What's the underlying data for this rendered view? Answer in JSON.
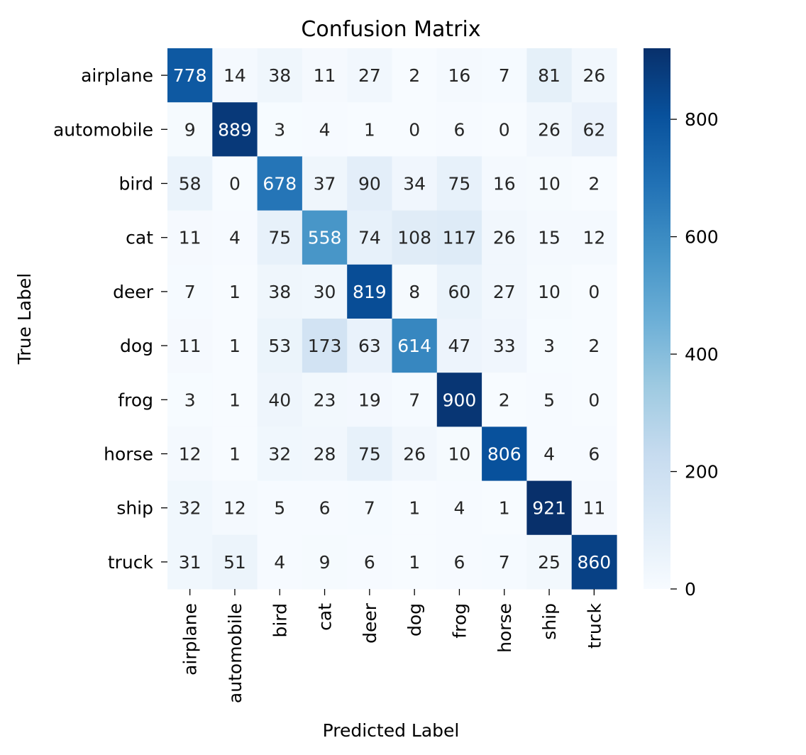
{
  "chart_data": {
    "type": "heatmap",
    "title": "Confusion Matrix",
    "xlabel": "Predicted Label",
    "ylabel": "True Label",
    "x_categories": [
      "airplane",
      "automobile",
      "bird",
      "cat",
      "deer",
      "dog",
      "frog",
      "horse",
      "ship",
      "truck"
    ],
    "y_categories": [
      "airplane",
      "automobile",
      "bird",
      "cat",
      "deer",
      "dog",
      "frog",
      "horse",
      "ship",
      "truck"
    ],
    "values": [
      [
        778,
        14,
        38,
        11,
        27,
        2,
        16,
        7,
        81,
        26
      ],
      [
        9,
        889,
        3,
        4,
        1,
        0,
        6,
        0,
        26,
        62
      ],
      [
        58,
        0,
        678,
        37,
        90,
        34,
        75,
        16,
        10,
        2
      ],
      [
        11,
        4,
        75,
        558,
        74,
        108,
        117,
        26,
        15,
        12
      ],
      [
        7,
        1,
        38,
        30,
        819,
        8,
        60,
        27,
        10,
        0
      ],
      [
        11,
        1,
        53,
        173,
        63,
        614,
        47,
        33,
        3,
        2
      ],
      [
        3,
        1,
        40,
        23,
        19,
        7,
        900,
        2,
        5,
        0
      ],
      [
        12,
        1,
        32,
        28,
        75,
        26,
        10,
        806,
        4,
        6
      ],
      [
        32,
        12,
        5,
        6,
        7,
        1,
        4,
        1,
        921,
        11
      ],
      [
        31,
        51,
        4,
        9,
        6,
        1,
        6,
        7,
        25,
        860
      ]
    ],
    "colorbar": {
      "ticks": [
        0,
        200,
        400,
        600,
        800
      ],
      "range": [
        0,
        921
      ],
      "colormap": "Blues"
    },
    "annotations": "cell values shown",
    "grid": false
  }
}
